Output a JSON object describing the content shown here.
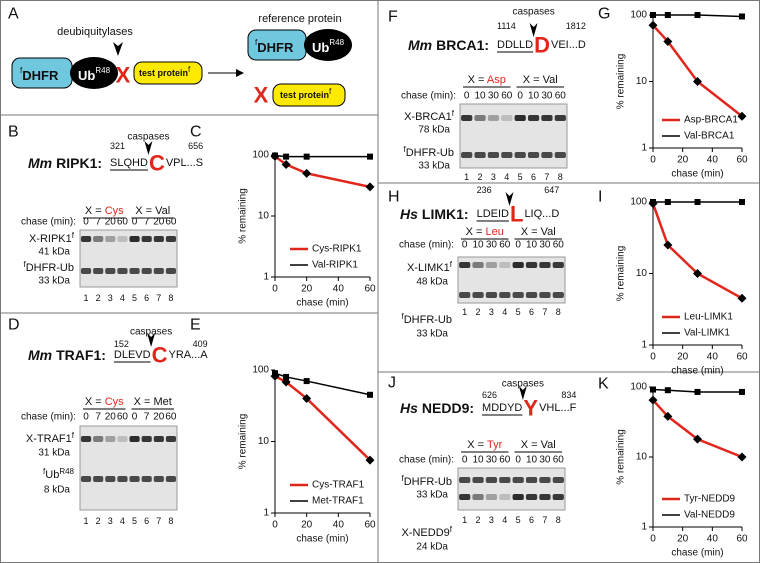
{
  "panel_a": {
    "label": "A",
    "enzyme": "deubiquitylases",
    "reference": "reference protein",
    "construct": {
      "dhfr_pre": "f",
      "dhfr": "DHFR",
      "ub": "Ub",
      "ub_sup": "R48",
      "x": "X",
      "test": "test protein",
      "test_sup": "f"
    },
    "reference_protein": {
      "dhfr_pre": "f",
      "dhfr": "DHFR",
      "ub": "Ub",
      "ub_sup": "R48"
    },
    "product": {
      "x": "X",
      "test": "test protein",
      "test_sup": "f"
    }
  },
  "gels": [
    {
      "label": "B",
      "caspases": "caspases",
      "start": 321,
      "end": 656,
      "species": "Mm",
      "protein": "RIPK1:",
      "seq_before": "SLQHD",
      "residue": "C",
      "seq_after": "VPL...S",
      "groups": [
        {
          "prefix": "X = ",
          "residue": "Cys"
        },
        {
          "prefix": "X = ",
          "residue": "Val"
        }
      ],
      "chase_label": "chase (min):",
      "chase": [
        0,
        7,
        20,
        60,
        0,
        7,
        20,
        60
      ],
      "bands": [
        {
          "name": "X-RIPK1",
          "sup": "f",
          "size": "41 kDa"
        },
        {
          "pre": "f",
          "name": "DHFR-Ub",
          "size": "33 kDa"
        }
      ],
      "lanes": [
        1,
        2,
        3,
        4,
        5,
        6,
        7,
        8
      ]
    },
    {
      "label": "D",
      "caspases": "caspases",
      "start": 152,
      "end": 409,
      "species": "Mm",
      "protein": "TRAF1:",
      "seq_before": "DLEVD",
      "residue": "C",
      "seq_after": "YRA...A",
      "groups": [
        {
          "prefix": "X = ",
          "residue": "Cys"
        },
        {
          "prefix": "X = ",
          "residue": "Met"
        }
      ],
      "chase_label": "chase (min):",
      "chase": [
        0,
        7,
        20,
        60,
        0,
        7,
        20,
        60
      ],
      "bands": [
        {
          "name": "X-TRAF1",
          "sup": "f",
          "size": "31 kDa"
        },
        {
          "pre": "f",
          "name": "Ub",
          "sup": "R48",
          "size": "8 kDa"
        }
      ],
      "lanes": [
        1,
        2,
        3,
        4,
        5,
        6,
        7,
        8
      ]
    },
    {
      "label": "F",
      "caspases": "caspases",
      "start": 1114,
      "end": 1812,
      "species": "Mm",
      "protein": "BRCA1:",
      "seq_before": "DDLLD",
      "residue": "D",
      "seq_after": "VEI...D",
      "groups": [
        {
          "prefix": "X = ",
          "residue": "Asp"
        },
        {
          "prefix": "X = ",
          "residue": "Val"
        }
      ],
      "chase_label": "chase (min):",
      "chase": [
        0,
        10,
        30,
        60,
        0,
        10,
        30,
        60
      ],
      "bands": [
        {
          "name": "X-BRCA1",
          "sup": "f",
          "size": "78 kDa"
        },
        {
          "pre": "f",
          "name": "DHFR-Ub",
          "size": "33 kDa"
        }
      ],
      "lanes": [
        1,
        2,
        3,
        4,
        5,
        6,
        7,
        8
      ]
    },
    {
      "label": "H",
      "start": 236,
      "end": 647,
      "species": "Hs",
      "protein": "LIMK1:",
      "seq_before": "LDEID",
      "residue": "L",
      "seq_after": "LIQ...D",
      "groups": [
        {
          "prefix": "X = ",
          "residue": "Leu"
        },
        {
          "prefix": "X = ",
          "residue": "Val"
        }
      ],
      "chase_label": "chase (min):",
      "chase": [
        0,
        10,
        30,
        60,
        0,
        10,
        30,
        60
      ],
      "bands": [
        {
          "name": "X-LIMK1",
          "sup": "f",
          "size": "48 kDa"
        },
        {
          "pre": "f",
          "name": "DHFR-Ub",
          "size": "33 kDa"
        }
      ],
      "lanes": [
        1,
        2,
        3,
        4,
        5,
        6,
        7,
        8
      ]
    },
    {
      "label": "J",
      "caspases": "caspases",
      "start": 626,
      "end": 834,
      "species": "Hs",
      "protein": "NEDD9:",
      "seq_before": "MDDYD",
      "residue": "Y",
      "seq_after": "VHL...F",
      "groups": [
        {
          "prefix": "X = ",
          "residue": "Tyr"
        },
        {
          "prefix": "X = ",
          "residue": "Val"
        }
      ],
      "chase_label": "chase (min):",
      "chase": [
        0,
        10,
        30,
        60,
        0,
        10,
        30,
        60
      ],
      "bands": [
        {
          "pre": "f",
          "name": "DHFR-Ub",
          "size": "33 kDa"
        },
        {
          "name": "X-NEDD9",
          "sup": "f",
          "size": "24 kDa"
        }
      ],
      "lanes": [
        1,
        2,
        3,
        4,
        5,
        6,
        7,
        8
      ]
    }
  ],
  "chart_data": [
    {
      "type": "line",
      "label": "C",
      "x": [
        0,
        7,
        20,
        60
      ],
      "xlim": [
        0,
        60
      ],
      "ylim": [
        1,
        100
      ],
      "log_y": true,
      "xticks": [
        0,
        20,
        40,
        60
      ],
      "yticks": [
        1,
        10,
        100
      ],
      "x_label": "chase (min)",
      "y_label": "% remaining",
      "legend": "lower right",
      "series": [
        {
          "name": "Cys-RIPK1",
          "color": "#e1261c",
          "marker": "diamond",
          "values": [
            95,
            70,
            50,
            30
          ]
        },
        {
          "name": "Val-RIPK1",
          "color": "#000000",
          "marker": "square",
          "values": [
            98,
            94,
            94,
            94
          ]
        }
      ]
    },
    {
      "type": "line",
      "label": "E",
      "x": [
        0,
        7,
        20,
        60
      ],
      "xlim": [
        0,
        60
      ],
      "ylim": [
        1,
        100
      ],
      "log_y": true,
      "xticks": [
        0,
        20,
        40,
        60
      ],
      "yticks": [
        1,
        10,
        100
      ],
      "x_label": "chase (min)",
      "y_label": "% remaining",
      "legend": "lower right",
      "series": [
        {
          "name": "Cys-TRAF1",
          "color": "#e1261c",
          "marker": "diamond",
          "values": [
            82,
            68,
            40,
            5.5
          ]
        },
        {
          "name": "Met-TRAF1",
          "color": "#000000",
          "marker": "square",
          "values": [
            90,
            80,
            70,
            45
          ]
        }
      ]
    },
    {
      "type": "line",
      "label": "G",
      "x": [
        0,
        10,
        30,
        60
      ],
      "xlim": [
        0,
        60
      ],
      "ylim": [
        1,
        100
      ],
      "log_y": true,
      "xticks": [
        0,
        20,
        40,
        60
      ],
      "yticks": [
        1,
        10,
        100
      ],
      "x_label": "chase (min)",
      "y_label": "% remaining",
      "legend": "lower right",
      "series": [
        {
          "name": "Asp-BRCA1",
          "color": "#e1261c",
          "marker": "diamond",
          "values": [
            70,
            40,
            10,
            3
          ]
        },
        {
          "name": "Val-BRCA1",
          "color": "#000000",
          "marker": "square",
          "values": [
            100,
            100,
            100,
            95
          ]
        }
      ]
    },
    {
      "type": "line",
      "label": "I",
      "x": [
        0,
        10,
        30,
        60
      ],
      "xlim": [
        0,
        60
      ],
      "ylim": [
        1,
        100
      ],
      "log_y": true,
      "xticks": [
        0,
        20,
        40,
        60
      ],
      "yticks": [
        1,
        10,
        100
      ],
      "x_label": "chase (min)",
      "y_label": "% remaining",
      "legend": "lower right",
      "series": [
        {
          "name": "Leu-LIMK1",
          "color": "#e1261c",
          "marker": "diamond",
          "values": [
            95,
            25,
            10,
            4.5
          ]
        },
        {
          "name": "Val-LIMK1",
          "color": "#000000",
          "marker": "square",
          "values": [
            100,
            100,
            100,
            100
          ]
        }
      ]
    },
    {
      "type": "line",
      "label": "K",
      "x": [
        0,
        10,
        30,
        60
      ],
      "xlim": [
        0,
        60
      ],
      "ylim": [
        1,
        100
      ],
      "log_y": true,
      "xticks": [
        0,
        20,
        40,
        60
      ],
      "yticks": [
        1,
        10,
        100
      ],
      "x_label": "chase (min)",
      "y_label": "% remaining",
      "legend": "lower right",
      "series": [
        {
          "name": "Tyr-NEDD9",
          "color": "#e1261c",
          "marker": "diamond",
          "values": [
            65,
            38,
            18,
            10
          ]
        },
        {
          "name": "Val-NEDD9",
          "color": "#000000",
          "marker": "square",
          "values": [
            92,
            90,
            85,
            85
          ]
        }
      ]
    }
  ]
}
